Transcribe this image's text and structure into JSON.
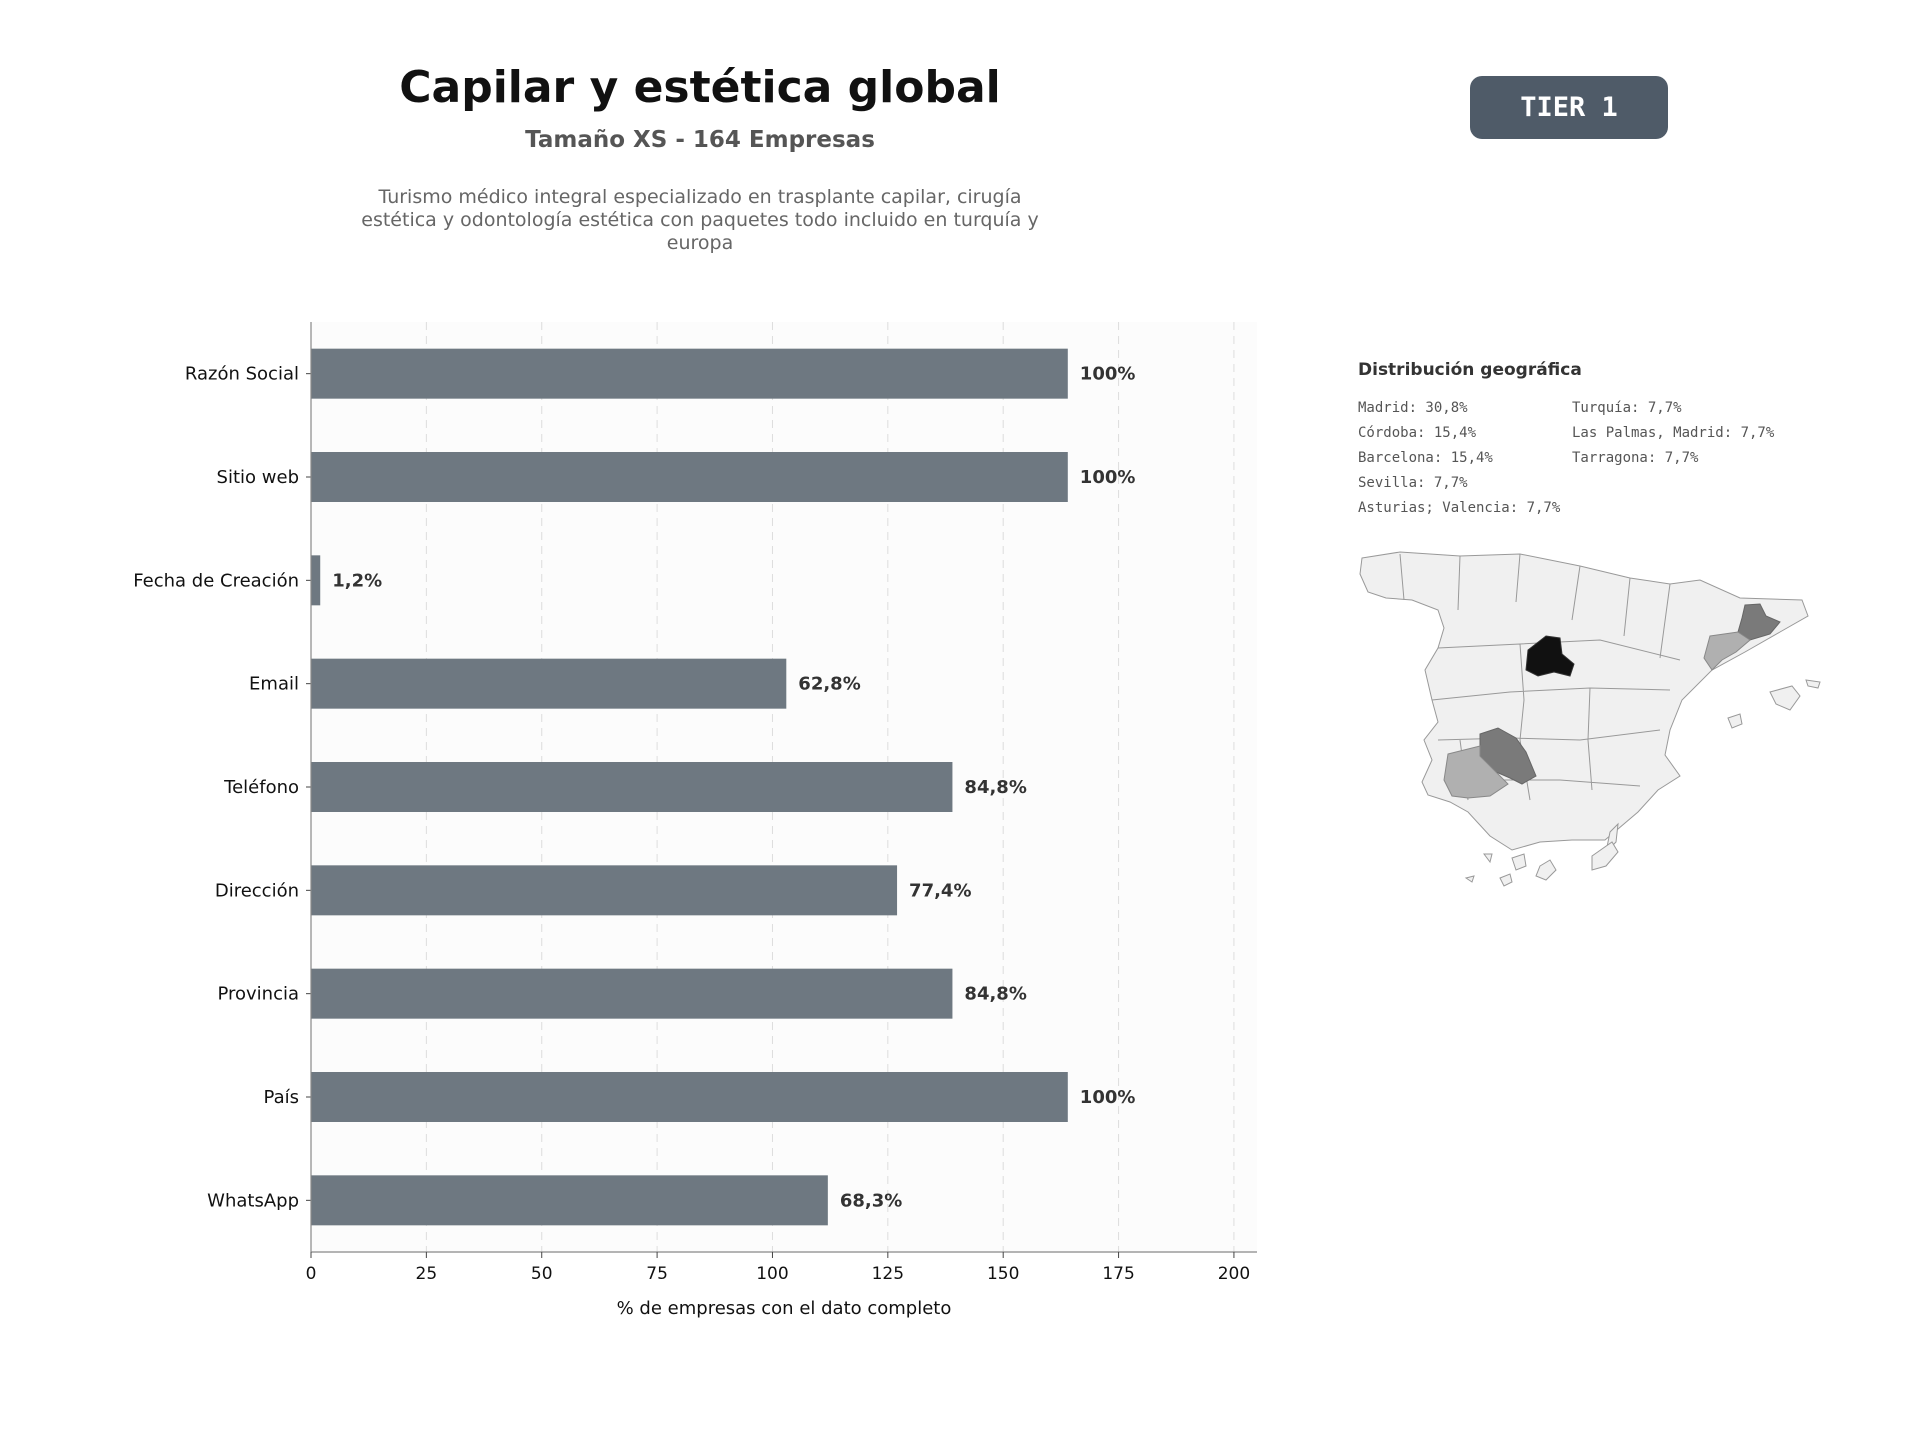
{
  "header": {
    "title": "Capilar y estética global",
    "subtitle": "Tamaño XS - 164 Empresas",
    "description": "Turismo médico integral especializado en trasplante capilar, cirugía estética y odontología estética con paquetes todo incluido en turquía y europa",
    "tier_badge": "TIER 1"
  },
  "chart_data": {
    "type": "bar",
    "orientation": "horizontal",
    "categories": [
      "Razón Social",
      "Sitio web",
      "Fecha de Creación",
      "Email",
      "Teléfono",
      "Dirección",
      "Provincia",
      "País",
      "WhatsApp"
    ],
    "values": [
      164,
      164,
      2,
      103,
      139,
      127,
      139,
      164,
      112
    ],
    "value_labels": [
      "100%",
      "100%",
      "1,2%",
      "62,8%",
      "84,8%",
      "77,4%",
      "84,8%",
      "100%",
      "68,3%"
    ],
    "xlabel": "% de empresas con el dato completo",
    "ylabel": "",
    "xlim": [
      0,
      205
    ],
    "xticks": [
      0,
      25,
      50,
      75,
      100,
      125,
      150,
      175,
      200
    ],
    "grid": "vertical dashed",
    "bar_color": "#6e7881"
  },
  "geo": {
    "title": "Distribución geográfica",
    "items": [
      "Madrid: 30,8%",
      "Turquía: 7,7%",
      "Córdoba: 15,4%",
      "Las Palmas, Madrid: 7,7%",
      "Barcelona: 15,4%",
      "Tarragona: 7,7%",
      "Sevilla: 7,7%",
      "",
      "Asturias; Valencia: 7,7%",
      ""
    ],
    "highlight_colors": {
      "Madrid": "#111111",
      "Córdoba": "#7a7a7a",
      "Barcelona": "#7a7a7a",
      "Sevilla": "#b0b0b0",
      "Tarragona": "#b0b0b0",
      "other": "#f0f0f0"
    }
  }
}
